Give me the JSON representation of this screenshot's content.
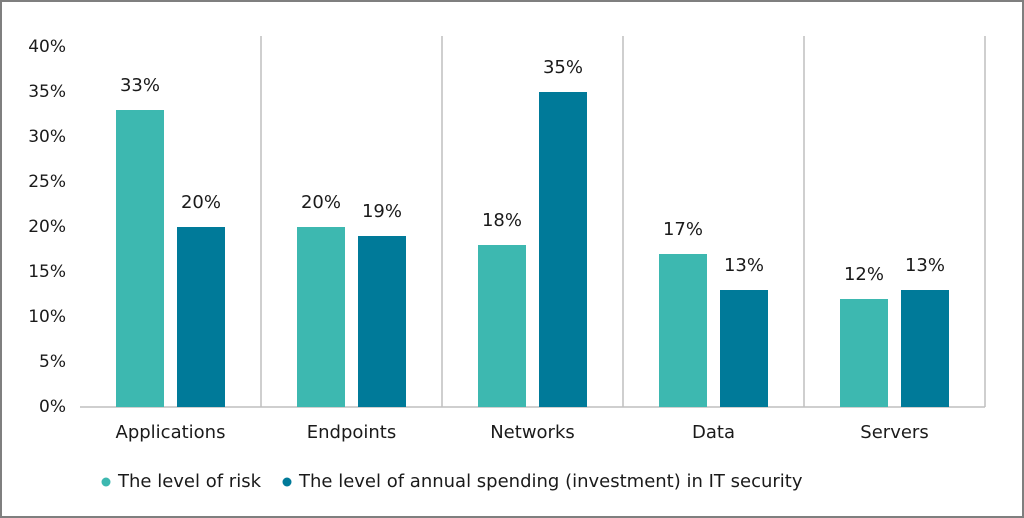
{
  "chart_data": {
    "type": "bar",
    "categories": [
      "Applications",
      "Endpoints",
      "Networks",
      "Data",
      "Servers"
    ],
    "series": [
      {
        "name": "The level of risk",
        "color": "#3db8b0",
        "values": [
          33,
          20,
          18,
          17,
          12
        ],
        "value_labels": [
          "33%",
          "20%",
          "18%",
          "17%",
          "12%"
        ]
      },
      {
        "name": "The level of annual spending (investment) in IT security",
        "color": "#007a99",
        "values": [
          20,
          19,
          35,
          13,
          13
        ],
        "value_labels": [
          "20%",
          "19%",
          "35%",
          "13%",
          "13%"
        ]
      }
    ],
    "ylim": [
      0,
      40
    ],
    "yticks": [
      {
        "value": 0,
        "label": "0%"
      },
      {
        "value": 5,
        "label": "5%"
      },
      {
        "value": 10,
        "label": "10%"
      },
      {
        "value": 15,
        "label": "15%"
      },
      {
        "value": 20,
        "label": "20%"
      },
      {
        "value": 25,
        "label": "25%"
      },
      {
        "value": 30,
        "label": "30%"
      },
      {
        "value": 35,
        "label": "35%"
      },
      {
        "value": 40,
        "label": "40%"
      }
    ],
    "legend": "bottom"
  }
}
